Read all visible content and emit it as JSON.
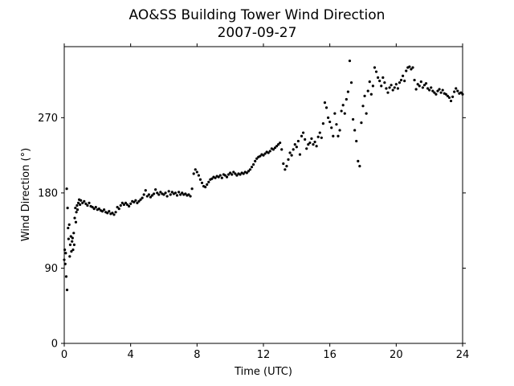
{
  "chart_data": {
    "type": "scatter",
    "title": "AO&SS Building Tower Wind Direction",
    "subtitle": "2007-09-27",
    "xlabel": "Time (UTC)",
    "ylabel": "Wind Direction (°)",
    "xlim": [
      0,
      24
    ],
    "ylim": [
      0,
      355
    ],
    "xticks": [
      0,
      4,
      8,
      12,
      16,
      20,
      24
    ],
    "yticks": [
      0,
      90,
      180,
      270
    ],
    "grid": false,
    "marker_color": "#000000",
    "series": [
      {
        "points": [
          [
            0.0,
            100
          ],
          [
            0.03,
            112
          ],
          [
            0.06,
            95
          ],
          [
            0.09,
            108
          ],
          [
            0.12,
            80
          ],
          [
            0.15,
            185
          ],
          [
            0.17,
            64
          ],
          [
            0.2,
            162
          ],
          [
            0.23,
            138
          ],
          [
            0.26,
            125
          ],
          [
            0.3,
            142
          ],
          [
            0.33,
            104
          ],
          [
            0.36,
            118
          ],
          [
            0.4,
            128
          ],
          [
            0.43,
            110
          ],
          [
            0.47,
            122
          ],
          [
            0.5,
            126
          ],
          [
            0.53,
            112
          ],
          [
            0.57,
            132
          ],
          [
            0.6,
            118
          ],
          [
            0.63,
            150
          ],
          [
            0.67,
            162
          ],
          [
            0.7,
            145
          ],
          [
            0.73,
            157
          ],
          [
            0.77,
            165
          ],
          [
            0.8,
            160
          ],
          [
            0.85,
            168
          ],
          [
            0.9,
            172
          ],
          [
            0.95,
            166
          ],
          [
            1.0,
            171
          ],
          [
            1.1,
            168
          ],
          [
            1.2,
            170
          ],
          [
            1.3,
            167
          ],
          [
            1.4,
            165
          ],
          [
            1.5,
            168
          ],
          [
            1.6,
            164
          ],
          [
            1.7,
            163
          ],
          [
            1.8,
            161
          ],
          [
            1.9,
            163
          ],
          [
            2.0,
            160
          ],
          [
            2.1,
            161
          ],
          [
            2.2,
            159
          ],
          [
            2.3,
            158
          ],
          [
            2.4,
            160
          ],
          [
            2.5,
            157
          ],
          [
            2.6,
            156
          ],
          [
            2.7,
            158
          ],
          [
            2.8,
            155
          ],
          [
            2.9,
            156
          ],
          [
            3.0,
            154
          ],
          [
            3.1,
            157
          ],
          [
            3.2,
            163
          ],
          [
            3.3,
            161
          ],
          [
            3.4,
            165
          ],
          [
            3.5,
            168
          ],
          [
            3.6,
            166
          ],
          [
            3.7,
            168
          ],
          [
            3.8,
            166
          ],
          [
            3.9,
            164
          ],
          [
            4.0,
            167
          ],
          [
            4.1,
            170
          ],
          [
            4.2,
            169
          ],
          [
            4.3,
            171
          ],
          [
            4.4,
            168
          ],
          [
            4.5,
            170
          ],
          [
            4.6,
            172
          ],
          [
            4.7,
            174
          ],
          [
            4.8,
            178
          ],
          [
            4.9,
            183
          ],
          [
            5.0,
            176
          ],
          [
            5.1,
            178
          ],
          [
            5.2,
            175
          ],
          [
            5.3,
            177
          ],
          [
            5.4,
            179
          ],
          [
            5.5,
            184
          ],
          [
            5.6,
            180
          ],
          [
            5.7,
            178
          ],
          [
            5.8,
            181
          ],
          [
            5.9,
            179
          ],
          [
            6.0,
            178
          ],
          [
            6.1,
            180
          ],
          [
            6.2,
            176
          ],
          [
            6.3,
            182
          ],
          [
            6.4,
            178
          ],
          [
            6.5,
            181
          ],
          [
            6.6,
            179
          ],
          [
            6.7,
            180
          ],
          [
            6.8,
            177
          ],
          [
            6.9,
            181
          ],
          [
            7.0,
            178
          ],
          [
            7.1,
            180
          ],
          [
            7.2,
            178
          ],
          [
            7.3,
            179
          ],
          [
            7.4,
            177
          ],
          [
            7.5,
            178
          ],
          [
            7.6,
            176
          ],
          [
            7.7,
            185
          ],
          [
            7.8,
            203
          ],
          [
            7.9,
            208
          ],
          [
            8.0,
            205
          ],
          [
            8.1,
            201
          ],
          [
            8.2,
            196
          ],
          [
            8.3,
            192
          ],
          [
            8.4,
            188
          ],
          [
            8.5,
            187
          ],
          [
            8.6,
            190
          ],
          [
            8.7,
            193
          ],
          [
            8.8,
            196
          ],
          [
            8.9,
            197
          ],
          [
            9.0,
            199
          ],
          [
            9.1,
            198
          ],
          [
            9.2,
            200
          ],
          [
            9.3,
            199
          ],
          [
            9.4,
            201
          ],
          [
            9.5,
            198
          ],
          [
            9.6,
            202
          ],
          [
            9.7,
            201
          ],
          [
            9.8,
            199
          ],
          [
            9.9,
            202
          ],
          [
            10.0,
            204
          ],
          [
            10.1,
            202
          ],
          [
            10.2,
            205
          ],
          [
            10.3,
            203
          ],
          [
            10.4,
            201
          ],
          [
            10.5,
            203
          ],
          [
            10.6,
            202
          ],
          [
            10.7,
            204
          ],
          [
            10.8,
            203
          ],
          [
            10.9,
            205
          ],
          [
            11.0,
            204
          ],
          [
            11.1,
            206
          ],
          [
            11.2,
            208
          ],
          [
            11.3,
            211
          ],
          [
            11.4,
            214
          ],
          [
            11.5,
            218
          ],
          [
            11.6,
            221
          ],
          [
            11.7,
            223
          ],
          [
            11.8,
            224
          ],
          [
            11.9,
            226
          ],
          [
            12.0,
            225
          ],
          [
            12.1,
            227
          ],
          [
            12.2,
            229
          ],
          [
            12.3,
            228
          ],
          [
            12.4,
            230
          ],
          [
            12.5,
            233
          ],
          [
            12.6,
            232
          ],
          [
            12.7,
            234
          ],
          [
            12.8,
            236
          ],
          [
            12.9,
            238
          ],
          [
            13.0,
            240
          ],
          [
            13.1,
            232
          ],
          [
            13.2,
            215
          ],
          [
            13.3,
            208
          ],
          [
            13.4,
            212
          ],
          [
            13.5,
            220
          ],
          [
            13.6,
            228
          ],
          [
            13.7,
            225
          ],
          [
            13.8,
            232
          ],
          [
            13.9,
            238
          ],
          [
            14.0,
            235
          ],
          [
            14.1,
            242
          ],
          [
            14.2,
            226
          ],
          [
            14.3,
            248
          ],
          [
            14.4,
            252
          ],
          [
            14.5,
            244
          ],
          [
            14.6,
            233
          ],
          [
            14.7,
            238
          ],
          [
            14.8,
            240
          ],
          [
            14.9,
            245
          ],
          [
            15.0,
            238
          ],
          [
            15.1,
            241
          ],
          [
            15.2,
            236
          ],
          [
            15.3,
            247
          ],
          [
            15.4,
            252
          ],
          [
            15.5,
            246
          ],
          [
            15.6,
            263
          ],
          [
            15.7,
            288
          ],
          [
            15.8,
            282
          ],
          [
            15.9,
            270
          ],
          [
            16.0,
            265
          ],
          [
            16.1,
            258
          ],
          [
            16.2,
            248
          ],
          [
            16.3,
            275
          ],
          [
            16.4,
            262
          ],
          [
            16.5,
            248
          ],
          [
            16.6,
            255
          ],
          [
            16.7,
            278
          ],
          [
            16.8,
            285
          ],
          [
            16.9,
            275
          ],
          [
            17.0,
            292
          ],
          [
            17.1,
            301
          ],
          [
            17.2,
            338
          ],
          [
            17.3,
            312
          ],
          [
            17.4,
            268
          ],
          [
            17.5,
            255
          ],
          [
            17.6,
            242
          ],
          [
            17.7,
            218
          ],
          [
            17.8,
            212
          ],
          [
            17.9,
            264
          ],
          [
            18.0,
            284
          ],
          [
            18.1,
            296
          ],
          [
            18.2,
            275
          ],
          [
            18.3,
            302
          ],
          [
            18.4,
            313
          ],
          [
            18.5,
            298
          ],
          [
            18.6,
            308
          ],
          [
            18.7,
            330
          ],
          [
            18.8,
            325
          ],
          [
            18.9,
            318
          ],
          [
            19.0,
            314
          ],
          [
            19.1,
            308
          ],
          [
            19.2,
            318
          ],
          [
            19.3,
            312
          ],
          [
            19.4,
            305
          ],
          [
            19.5,
            300
          ],
          [
            19.6,
            306
          ],
          [
            19.7,
            309
          ],
          [
            19.8,
            303
          ],
          [
            19.9,
            306
          ],
          [
            20.0,
            310
          ],
          [
            20.1,
            305
          ],
          [
            20.2,
            312
          ],
          [
            20.3,
            315
          ],
          [
            20.4,
            320
          ],
          [
            20.5,
            314
          ],
          [
            20.6,
            326
          ],
          [
            20.7,
            330
          ],
          [
            20.8,
            331
          ],
          [
            20.9,
            328
          ],
          [
            21.0,
            330
          ],
          [
            21.1,
            315
          ],
          [
            21.2,
            304
          ],
          [
            21.3,
            310
          ],
          [
            21.4,
            308
          ],
          [
            21.5,
            313
          ],
          [
            21.6,
            306
          ],
          [
            21.7,
            309
          ],
          [
            21.8,
            311
          ],
          [
            21.9,
            305
          ],
          [
            22.0,
            303
          ],
          [
            22.1,
            306
          ],
          [
            22.2,
            302
          ],
          [
            22.3,
            300
          ],
          [
            22.4,
            298
          ],
          [
            22.5,
            302
          ],
          [
            22.6,
            304
          ],
          [
            22.7,
            300
          ],
          [
            22.8,
            303
          ],
          [
            22.9,
            299
          ],
          [
            23.0,
            298
          ],
          [
            23.1,
            296
          ],
          [
            23.2,
            294
          ],
          [
            23.3,
            290
          ],
          [
            23.4,
            295
          ],
          [
            23.5,
            301
          ],
          [
            23.6,
            305
          ],
          [
            23.7,
            302
          ],
          [
            23.8,
            299
          ],
          [
            23.9,
            300
          ],
          [
            24.0,
            298
          ]
        ]
      }
    ]
  }
}
